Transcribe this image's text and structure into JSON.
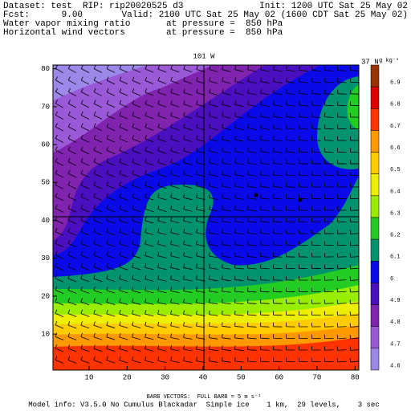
{
  "header": {
    "dataset": "Dataset: test  RIP: rip20020525 d3",
    "init": "Init: 1200 UTC Sat 25 May 02",
    "fcst": "Fcst:      9.00",
    "valid": "Valid: 2100 UTC Sat 25 May 02 (1600 CDT Sat 25 May 02)",
    "field1": "Water vapor mixing ratio",
    "field1_level": "at pressure =  850 hPa",
    "field2": "Horizontal wind vectors",
    "field2_level": "at pressure =  850 hPa"
  },
  "plot": {
    "cross_lon": "101 W",
    "cross_lat": "37 N",
    "xlim": [
      0.5,
      81
    ],
    "ylim": [
      0.5,
      81
    ],
    "xticks": [
      10,
      20,
      30,
      40,
      50,
      60,
      70,
      80
    ],
    "yticks": [
      10,
      20,
      30,
      40,
      50,
      60,
      70,
      80
    ]
  },
  "colorbar": {
    "unit": "g kg⁻¹",
    "labels": [
      "6.9",
      "6.8",
      "6.7",
      "6.6",
      "6.5",
      "6.4",
      "6.3",
      "6.2",
      "6.1",
      "6",
      "4.9",
      "4.8",
      "4.7",
      "4.6"
    ]
  },
  "footer": {
    "barb": "BARB VECTORS:  FULL BARB = 5 m s⁻¹",
    "model": "Model info: V3.5.0 No Cumulus Blackadar  Simple ice    1 km,  29 levels,    3 sec"
  }
}
